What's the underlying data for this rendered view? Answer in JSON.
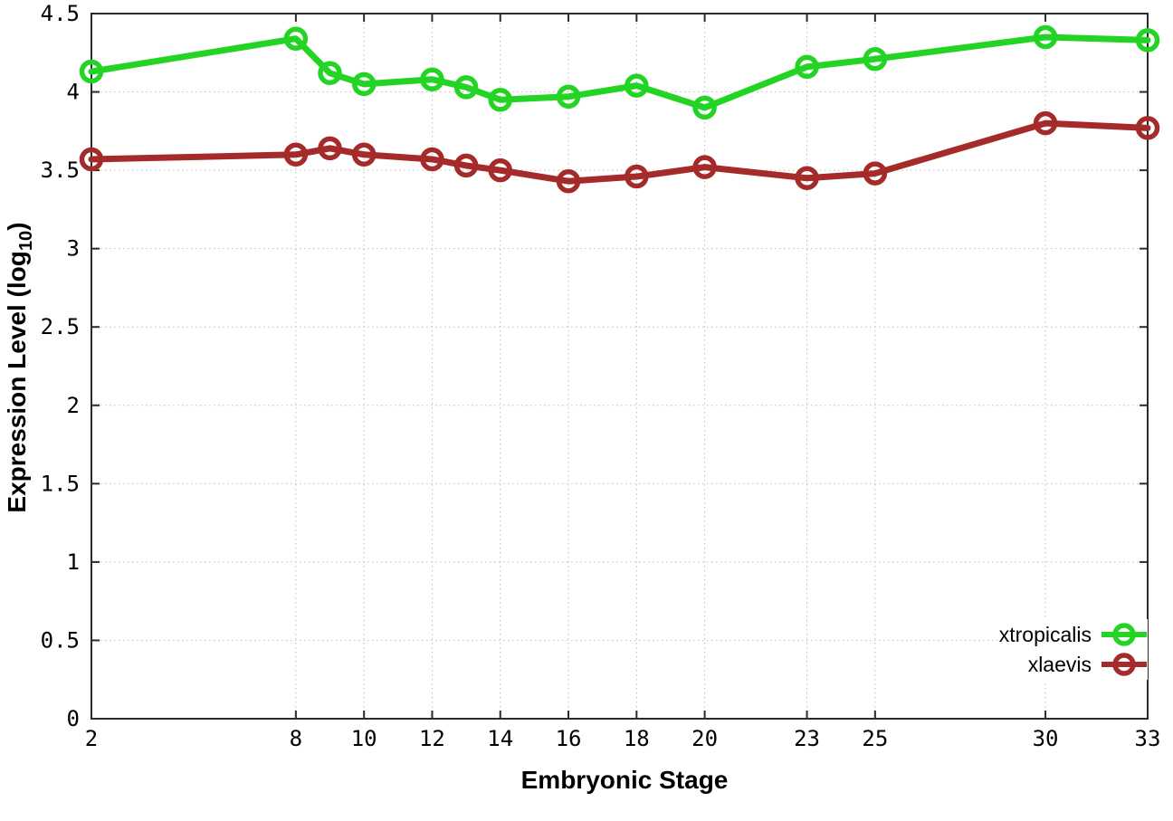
{
  "chart_data": {
    "type": "line",
    "title": "",
    "xlabel": "Embryonic Stage",
    "ylabel": "Expression Level (log10)",
    "ylabel_parts": {
      "main": "Expression Level (log",
      "sub": "10",
      "end": ")"
    },
    "x": [
      2,
      8,
      9,
      10,
      12,
      13,
      14,
      16,
      18,
      20,
      23,
      25,
      30,
      33
    ],
    "x_ticks": [
      2,
      8,
      10,
      12,
      14,
      16,
      18,
      20,
      23,
      25,
      30,
      33
    ],
    "y_ticks": [
      0,
      0.5,
      1,
      1.5,
      2,
      2.5,
      3,
      3.5,
      4,
      4.5
    ],
    "xlim": [
      2,
      33
    ],
    "ylim": [
      0,
      4.5
    ],
    "grid": true,
    "legend_position": "bottom-right",
    "marker": "open-circle",
    "series": [
      {
        "name": "xtropicalis",
        "color": "#24d424",
        "values": [
          4.13,
          4.34,
          4.12,
          4.05,
          4.08,
          4.03,
          3.95,
          3.97,
          4.04,
          3.9,
          4.16,
          4.21,
          4.35,
          4.33
        ]
      },
      {
        "name": "xlaevis",
        "color": "#a52a2a",
        "values": [
          3.57,
          3.6,
          3.64,
          3.6,
          3.57,
          3.53,
          3.5,
          3.43,
          3.46,
          3.52,
          3.45,
          3.48,
          3.8,
          3.77
        ]
      }
    ]
  },
  "colors": {
    "axis": "#2b2b2b",
    "grid": "#bdbdbd",
    "background": "#ffffff",
    "tick_text": "#000000"
  }
}
